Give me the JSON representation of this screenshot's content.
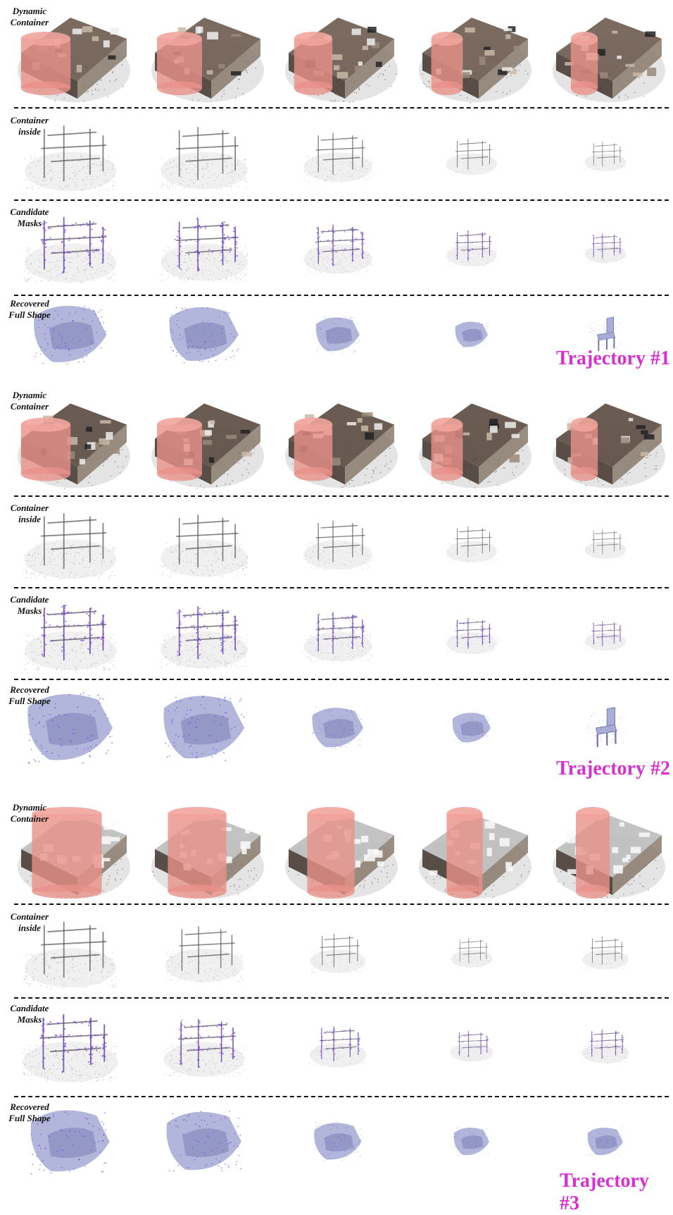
{
  "row_labels": {
    "dynamic_container": "Dynamic\nContainer",
    "container_inside": "Container\ninside",
    "candidate_masks": "Candidate\nMasks",
    "recovered_full_shape": "Recovered\nFull Shape"
  },
  "trajectories": [
    {
      "label": "Trajectory #1"
    },
    {
      "label": "Trajectory #2"
    },
    {
      "label": "Trajectory #3"
    }
  ],
  "colors": {
    "container": "#e8918a",
    "mask": "#7a3cf0",
    "mesh": "#a9aed6",
    "trajectory_label": "#d62fd2"
  }
}
